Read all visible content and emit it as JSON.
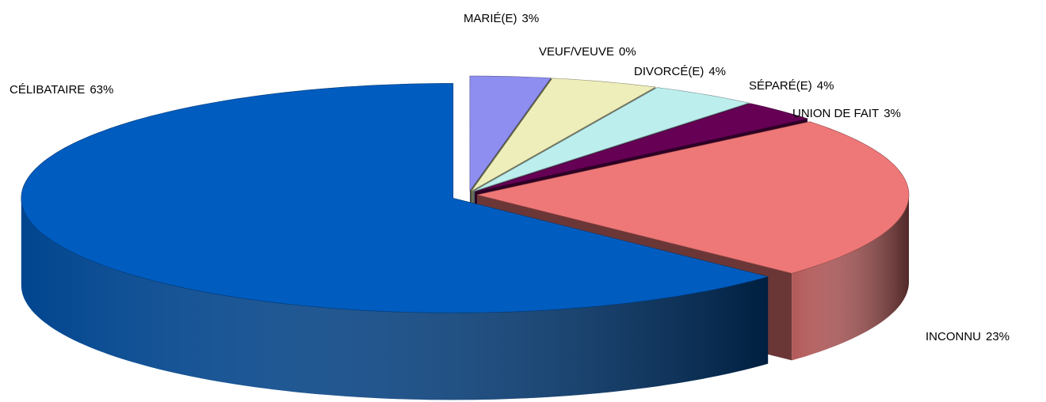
{
  "chart_data": {
    "type": "pie3d",
    "categories": [
      "MARIÉ(E)",
      "VEUF/VEUVE",
      "DIVORCÉ(E)",
      "SÉPARÉ(E)",
      "UNION DE FAIT",
      "INCONNU",
      "CÉLIBATAIRE"
    ],
    "values": [
      3,
      0,
      4,
      4,
      3,
      23,
      63
    ],
    "value_labels": [
      "3%",
      "0%",
      "4%",
      "4%",
      "3%",
      "23%",
      "63%"
    ],
    "colors": [
      "#8e8ef0",
      "#a8a860",
      "#eeeebb",
      "#bdeeee",
      "#660055",
      "#ee7777",
      "#005cbf"
    ]
  }
}
